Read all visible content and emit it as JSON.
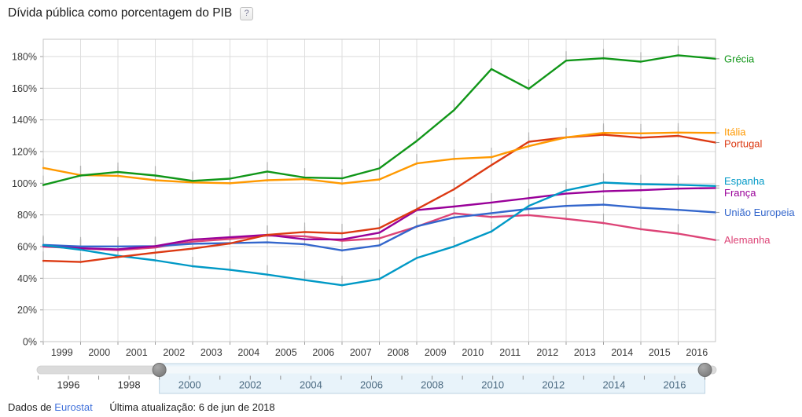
{
  "title": "Dívida pública como porcentagem do PIB",
  "help_button": "?",
  "footer": {
    "source_prefix": "Dados de",
    "source_link": "Eurostat",
    "updated": "Última atualização: 6 de jun de 2018"
  },
  "chart_data": {
    "type": "line",
    "title": "Dívida pública como porcentagem do PIB",
    "xlabel": "",
    "ylabel": "",
    "grid": true,
    "legend_position": "right",
    "ylim": [
      0,
      191
    ],
    "y_ticks": [
      0,
      20,
      40,
      60,
      80,
      100,
      120,
      140,
      160,
      180
    ],
    "y_tick_labels": [
      "0%",
      "20%",
      "40%",
      "60%",
      "80%",
      "100%",
      "120%",
      "140%",
      "160%",
      "180%"
    ],
    "x": [
      1999,
      2000,
      2001,
      2002,
      2003,
      2004,
      2005,
      2006,
      2007,
      2008,
      2009,
      2010,
      2011,
      2012,
      2013,
      2014,
      2015,
      2016,
      2017
    ],
    "x_tick_labels": [
      "1999",
      "2000",
      "2001",
      "2002",
      "2003",
      "2004",
      "2005",
      "2006",
      "2007",
      "2008",
      "2009",
      "2010",
      "2011",
      "2012",
      "2013",
      "2014",
      "2015",
      "2016"
    ],
    "series": [
      {
        "name": "Grécia",
        "color": "#109618",
        "values": [
          98.9,
          104.9,
          107.1,
          104.9,
          101.5,
          102.9,
          107.4,
          103.6,
          103.1,
          109.4,
          126.7,
          146.2,
          172.1,
          159.6,
          177.4,
          178.9,
          176.8,
          180.8,
          178.6
        ]
      },
      {
        "name": "Itália",
        "color": "#FF9900",
        "values": [
          109.7,
          105.1,
          104.7,
          101.9,
          100.5,
          100.0,
          101.9,
          102.6,
          99.8,
          102.4,
          112.5,
          115.4,
          116.5,
          123.4,
          129.0,
          131.8,
          131.5,
          132.0,
          131.8
        ]
      },
      {
        "name": "Portugal",
        "color": "#DC3912",
        "values": [
          51.0,
          50.3,
          53.4,
          56.2,
          58.7,
          62.0,
          67.4,
          69.2,
          68.4,
          71.7,
          83.6,
          96.2,
          111.4,
          126.2,
          129.0,
          130.6,
          128.8,
          129.9,
          125.7
        ]
      },
      {
        "name": "Espanha",
        "color": "#0099C6",
        "values": [
          60.9,
          58.0,
          54.2,
          51.3,
          47.6,
          45.3,
          42.3,
          38.9,
          35.6,
          39.5,
          52.8,
          60.1,
          69.5,
          85.7,
          95.5,
          100.4,
          99.4,
          99.0,
          98.3
        ]
      },
      {
        "name": "França",
        "color": "#990099",
        "values": [
          60.5,
          58.9,
          58.3,
          60.3,
          64.4,
          65.9,
          67.4,
          64.6,
          64.5,
          68.8,
          83.0,
          85.3,
          87.8,
          90.6,
          93.4,
          94.9,
          95.6,
          96.6,
          97.0
        ]
      },
      {
        "name": "União Europeia",
        "color": "#3366CC",
        "values": [
          61.1,
          60.1,
          60.1,
          60.3,
          61.8,
          62.2,
          62.7,
          61.5,
          57.6,
          60.8,
          72.8,
          78.4,
          81.1,
          83.8,
          85.7,
          86.5,
          84.5,
          83.2,
          81.6
        ]
      },
      {
        "name": "Alemanha",
        "color": "#DD4477",
        "values": [
          60.0,
          58.9,
          57.7,
          59.4,
          63.1,
          64.8,
          67.0,
          66.5,
          63.7,
          65.2,
          72.6,
          81.0,
          78.7,
          79.9,
          77.5,
          74.9,
          71.0,
          68.2,
          64.1
        ]
      }
    ]
  },
  "timeline": {
    "axis_start": 1995,
    "axis_end": 2017,
    "selected_start": 1999,
    "selected_end": 2017,
    "label_years": [
      "1996",
      "1998",
      "2000",
      "2002",
      "2004",
      "2006",
      "2008",
      "2010",
      "2012",
      "2014",
      "2016"
    ]
  }
}
